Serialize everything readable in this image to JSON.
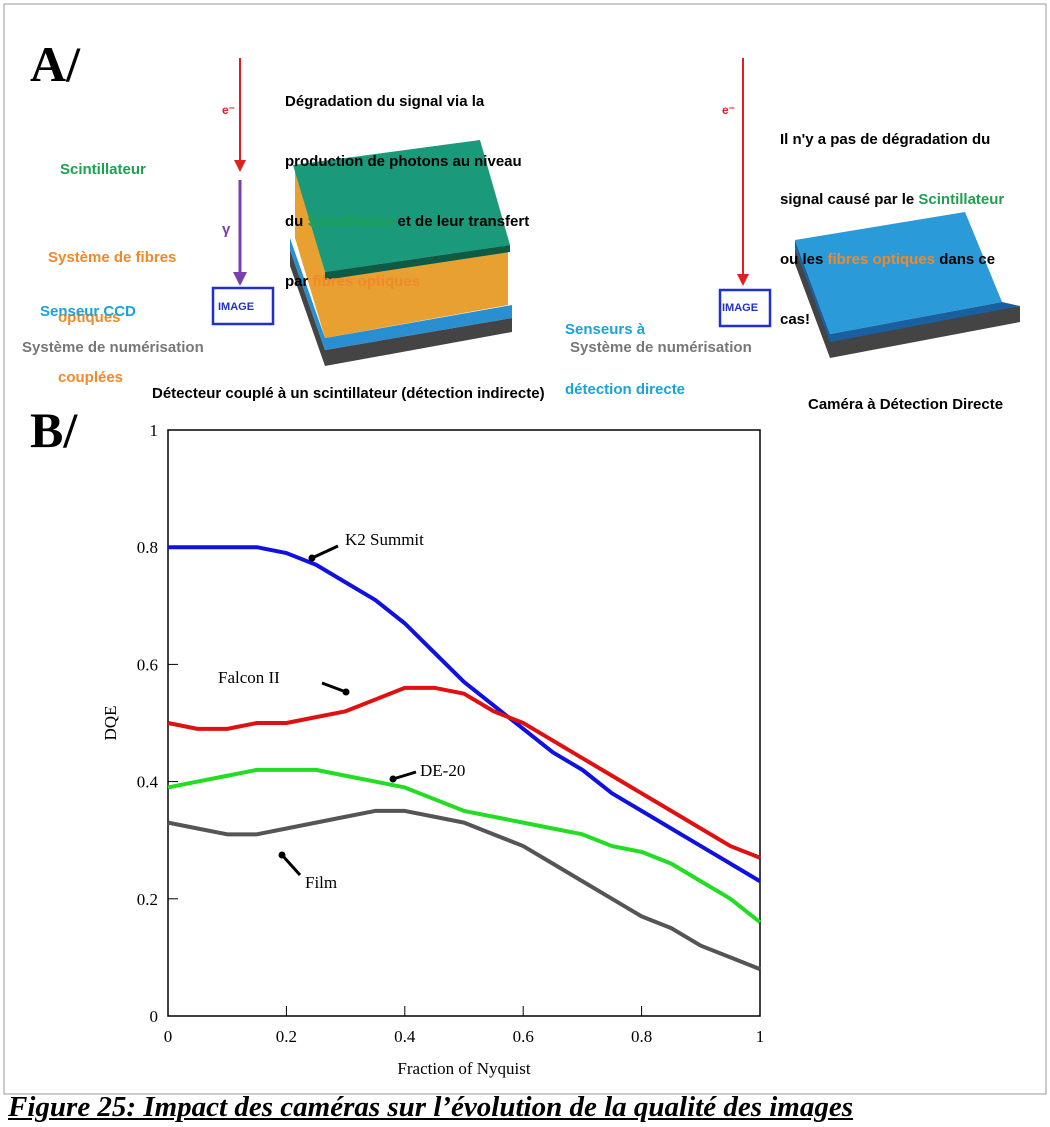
{
  "panel_a": {
    "label": "A/",
    "indirect": {
      "electron": "e⁻",
      "note": [
        [
          "Dégradation du signal via la"
        ],
        [
          "production de photons au niveau"
        ],
        [
          "du ",
          "Scintillateur",
          " et de leur transfert"
        ],
        [
          "par ",
          "fibres optiques"
        ]
      ],
      "scintillator": "Scintillateur",
      "fibers": [
        "Système de fibres",
        "optiques",
        "couplées"
      ],
      "photon": "γ",
      "sensor": "Senseur CCD",
      "image": "IMAGE",
      "digitization": "Système de numérisation",
      "caption": "Détecteur couplé à un scintillateur (détection indirecte)"
    },
    "direct": {
      "electron": "e⁻",
      "note": [
        [
          "Il n'y a pas de dégradation du"
        ],
        [
          "signal causé par le ",
          "Scintillateur"
        ],
        [
          "ou les ",
          "fibres optiques",
          " dans ce"
        ],
        [
          "cas!"
        ]
      ],
      "sensor": [
        "Senseurs à",
        "détection directe"
      ],
      "image": "IMAGE",
      "digitization": "Système de numérisation",
      "caption": "Caméra à Détection Directe"
    }
  },
  "chart_data": {
    "type": "line",
    "panel_label": "B/",
    "xlabel": "Fraction of Nyquist",
    "ylabel": "DQE",
    "x": [
      0,
      0.05,
      0.1,
      0.15,
      0.2,
      0.25,
      0.3,
      0.35,
      0.4,
      0.45,
      0.5,
      0.55,
      0.6,
      0.65,
      0.7,
      0.75,
      0.8,
      0.85,
      0.9,
      0.95,
      1
    ],
    "series": [
      {
        "name": "K2 Summit",
        "color": "#1010e0",
        "values": [
          0.8,
          0.8,
          0.8,
          0.8,
          0.79,
          0.77,
          0.74,
          0.71,
          0.67,
          0.62,
          0.57,
          0.53,
          0.49,
          0.45,
          0.42,
          0.38,
          0.35,
          0.32,
          0.29,
          0.26,
          0.23
        ]
      },
      {
        "name": "Falcon II",
        "color": "#e01010",
        "values": [
          0.5,
          0.49,
          0.49,
          0.5,
          0.5,
          0.51,
          0.52,
          0.54,
          0.56,
          0.56,
          0.55,
          0.52,
          0.5,
          0.47,
          0.44,
          0.41,
          0.38,
          0.35,
          0.32,
          0.29,
          0.27
        ]
      },
      {
        "name": "DE-20",
        "color": "#22dd22",
        "values": [
          0.39,
          0.4,
          0.41,
          0.42,
          0.42,
          0.42,
          0.41,
          0.4,
          0.39,
          0.37,
          0.35,
          0.34,
          0.33,
          0.32,
          0.31,
          0.29,
          0.28,
          0.26,
          0.23,
          0.2,
          0.16
        ]
      },
      {
        "name": "Film",
        "color": "#555555",
        "values": [
          0.33,
          0.32,
          0.31,
          0.31,
          0.32,
          0.33,
          0.34,
          0.35,
          0.35,
          0.34,
          0.33,
          0.31,
          0.29,
          0.26,
          0.23,
          0.2,
          0.17,
          0.15,
          0.12,
          0.1,
          0.08
        ]
      }
    ],
    "xlim": [
      0,
      1
    ],
    "xticks": [
      0,
      0.2,
      0.4,
      0.6,
      0.8,
      1
    ],
    "ylim": [
      0,
      1
    ],
    "yticks": [
      0,
      0.2,
      0.4,
      0.6,
      0.8,
      1
    ]
  },
  "caption": "Figure 25: Impact des caméras sur l’évolution de la qualité des images"
}
